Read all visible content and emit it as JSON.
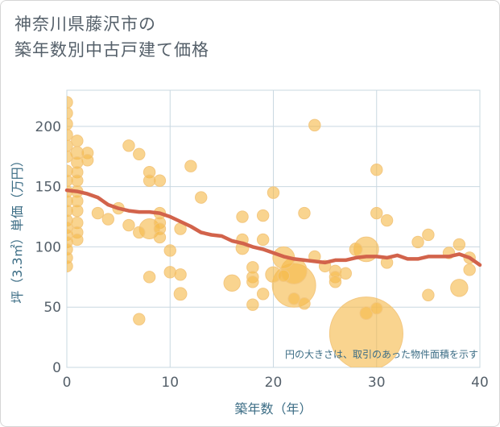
{
  "title_line1": "神奈川県藤沢市の",
  "title_line2": "築年数別中古戸建て価格",
  "colors": {
    "bubble_fill": "#f5b94a",
    "bubble_stroke": "#f3c780",
    "trend_line": "#d2634b",
    "grid": "#c9d8e1",
    "axis_text": "#55606a",
    "axis_title": "#3c6d85"
  },
  "chart_data": {
    "type": "scatter",
    "title": "神奈川県藤沢市の築年数別中古戸建て価格",
    "xlabel": "築年数（年）",
    "ylabel": "坪（3.3㎡）単価（万円）",
    "xlim": [
      0,
      40
    ],
    "ylim": [
      0,
      230
    ],
    "xticks": [
      0,
      10,
      20,
      30,
      40
    ],
    "yticks": [
      0,
      50,
      100,
      150,
      200
    ],
    "grid": true,
    "note": "円の大きさは、取引のあった物件面積を示す",
    "bubble_size": "area",
    "points": [
      {
        "x": 0,
        "y": 220,
        "s": 1
      },
      {
        "x": 0,
        "y": 211,
        "s": 1
      },
      {
        "x": 0,
        "y": 202,
        "s": 1
      },
      {
        "x": 0,
        "y": 193,
        "s": 1
      },
      {
        "x": 0,
        "y": 184,
        "s": 1
      },
      {
        "x": 0,
        "y": 175,
        "s": 1
      },
      {
        "x": 0,
        "y": 163,
        "s": 1
      },
      {
        "x": 0,
        "y": 155,
        "s": 1
      },
      {
        "x": 0,
        "y": 146,
        "s": 1
      },
      {
        "x": 0,
        "y": 138,
        "s": 1
      },
      {
        "x": 0,
        "y": 130,
        "s": 1
      },
      {
        "x": 0,
        "y": 122,
        "s": 1
      },
      {
        "x": 0,
        "y": 116,
        "s": 1
      },
      {
        "x": 0,
        "y": 110,
        "s": 1
      },
      {
        "x": 0,
        "y": 104,
        "s": 1
      },
      {
        "x": 0,
        "y": 98,
        "s": 1
      },
      {
        "x": 0,
        "y": 91,
        "s": 1
      },
      {
        "x": 0,
        "y": 84,
        "s": 1
      },
      {
        "x": 1,
        "y": 188,
        "s": 1
      },
      {
        "x": 1,
        "y": 178,
        "s": 1.2
      },
      {
        "x": 1,
        "y": 170,
        "s": 1
      },
      {
        "x": 1,
        "y": 162,
        "s": 1
      },
      {
        "x": 1,
        "y": 155,
        "s": 1
      },
      {
        "x": 1,
        "y": 146,
        "s": 1
      },
      {
        "x": 1,
        "y": 138,
        "s": 1
      },
      {
        "x": 1,
        "y": 130,
        "s": 1
      },
      {
        "x": 1,
        "y": 120,
        "s": 1
      },
      {
        "x": 1,
        "y": 112,
        "s": 1
      },
      {
        "x": 1,
        "y": 106,
        "s": 1
      },
      {
        "x": 2,
        "y": 178,
        "s": 1
      },
      {
        "x": 2,
        "y": 172,
        "s": 1
      },
      {
        "x": 3,
        "y": 128,
        "s": 1
      },
      {
        "x": 4,
        "y": 123,
        "s": 1
      },
      {
        "x": 5,
        "y": 132,
        "s": 1
      },
      {
        "x": 6,
        "y": 184,
        "s": 1
      },
      {
        "x": 6,
        "y": 118,
        "s": 1
      },
      {
        "x": 7,
        "y": 177,
        "s": 1
      },
      {
        "x": 7,
        "y": 112,
        "s": 1
      },
      {
        "x": 7,
        "y": 40,
        "s": 1
      },
      {
        "x": 8,
        "y": 162,
        "s": 1
      },
      {
        "x": 8,
        "y": 155,
        "s": 1
      },
      {
        "x": 8,
        "y": 115,
        "s": 3
      },
      {
        "x": 8,
        "y": 75,
        "s": 1
      },
      {
        "x": 9,
        "y": 155,
        "s": 1
      },
      {
        "x": 9,
        "y": 128,
        "s": 1
      },
      {
        "x": 9,
        "y": 120,
        "s": 1
      },
      {
        "x": 9,
        "y": 115,
        "s": 1
      },
      {
        "x": 9,
        "y": 108,
        "s": 1
      },
      {
        "x": 10,
        "y": 97,
        "s": 1
      },
      {
        "x": 10,
        "y": 79,
        "s": 1
      },
      {
        "x": 11,
        "y": 115,
        "s": 1
      },
      {
        "x": 11,
        "y": 77,
        "s": 1
      },
      {
        "x": 11,
        "y": 61,
        "s": 1.2
      },
      {
        "x": 12,
        "y": 167,
        "s": 1
      },
      {
        "x": 13,
        "y": 141,
        "s": 1
      },
      {
        "x": 16,
        "y": 70,
        "s": 2
      },
      {
        "x": 17,
        "y": 125,
        "s": 1
      },
      {
        "x": 17,
        "y": 106,
        "s": 1
      },
      {
        "x": 17,
        "y": 99,
        "s": 1.2
      },
      {
        "x": 18,
        "y": 83,
        "s": 1
      },
      {
        "x": 18,
        "y": 75,
        "s": 1
      },
      {
        "x": 18,
        "y": 71,
        "s": 1
      },
      {
        "x": 18,
        "y": 52,
        "s": 1
      },
      {
        "x": 19,
        "y": 126,
        "s": 1
      },
      {
        "x": 19,
        "y": 106,
        "s": 1
      },
      {
        "x": 19,
        "y": 61,
        "s": 1
      },
      {
        "x": 20,
        "y": 145,
        "s": 1
      },
      {
        "x": 20,
        "y": 77,
        "s": 1.8
      },
      {
        "x": 21,
        "y": 91,
        "s": 3.5
      },
      {
        "x": 21,
        "y": 76,
        "s": 1
      },
      {
        "x": 22,
        "y": 80,
        "s": 5
      },
      {
        "x": 22,
        "y": 68,
        "s": 14
      },
      {
        "x": 22,
        "y": 57,
        "s": 1
      },
      {
        "x": 23,
        "y": 128,
        "s": 1
      },
      {
        "x": 23,
        "y": 53,
        "s": 1
      },
      {
        "x": 24,
        "y": 201,
        "s": 1
      },
      {
        "x": 24,
        "y": 92,
        "s": 1
      },
      {
        "x": 25,
        "y": 84,
        "s": 1
      },
      {
        "x": 26,
        "y": 80,
        "s": 1
      },
      {
        "x": 26,
        "y": 75,
        "s": 1
      },
      {
        "x": 26,
        "y": 71,
        "s": 1
      },
      {
        "x": 27,
        "y": 78,
        "s": 1
      },
      {
        "x": 28,
        "y": 98,
        "s": 1.2
      },
      {
        "x": 29,
        "y": 98,
        "s": 4.5
      },
      {
        "x": 29,
        "y": 45,
        "s": 1.2
      },
      {
        "x": 29,
        "y": 28,
        "s": 40
      },
      {
        "x": 30,
        "y": 164,
        "s": 1
      },
      {
        "x": 30,
        "y": 128,
        "s": 1
      },
      {
        "x": 30,
        "y": 49,
        "s": 1
      },
      {
        "x": 31,
        "y": 122,
        "s": 1
      },
      {
        "x": 31,
        "y": 87,
        "s": 1
      },
      {
        "x": 34,
        "y": 104,
        "s": 1
      },
      {
        "x": 35,
        "y": 110,
        "s": 1
      },
      {
        "x": 35,
        "y": 60,
        "s": 1
      },
      {
        "x": 37,
        "y": 95,
        "s": 1
      },
      {
        "x": 38,
        "y": 102,
        "s": 1
      },
      {
        "x": 38,
        "y": 66,
        "s": 2.2
      },
      {
        "x": 39,
        "y": 91,
        "s": 1
      },
      {
        "x": 39,
        "y": 81,
        "s": 1
      }
    ],
    "series": [
      {
        "type": "line",
        "x": [
          0,
          1,
          2,
          3,
          4,
          5,
          6,
          7,
          8,
          9,
          10,
          11,
          12,
          13,
          14,
          15,
          16,
          17,
          18,
          19,
          20,
          21,
          22,
          23,
          24,
          25,
          26,
          27,
          28,
          29,
          30,
          31,
          32,
          33,
          34,
          35,
          36,
          37,
          38,
          39,
          40
        ],
        "y": [
          147,
          146,
          144,
          141,
          135,
          132,
          130,
          129,
          129,
          128,
          125,
          121,
          117,
          112,
          110,
          109,
          105,
          103,
          100,
          98,
          95,
          92,
          90,
          89,
          88,
          87,
          89,
          89,
          91,
          92,
          92,
          91,
          93,
          90,
          90,
          92,
          92,
          92,
          94,
          91,
          85
        ]
      }
    ]
  }
}
